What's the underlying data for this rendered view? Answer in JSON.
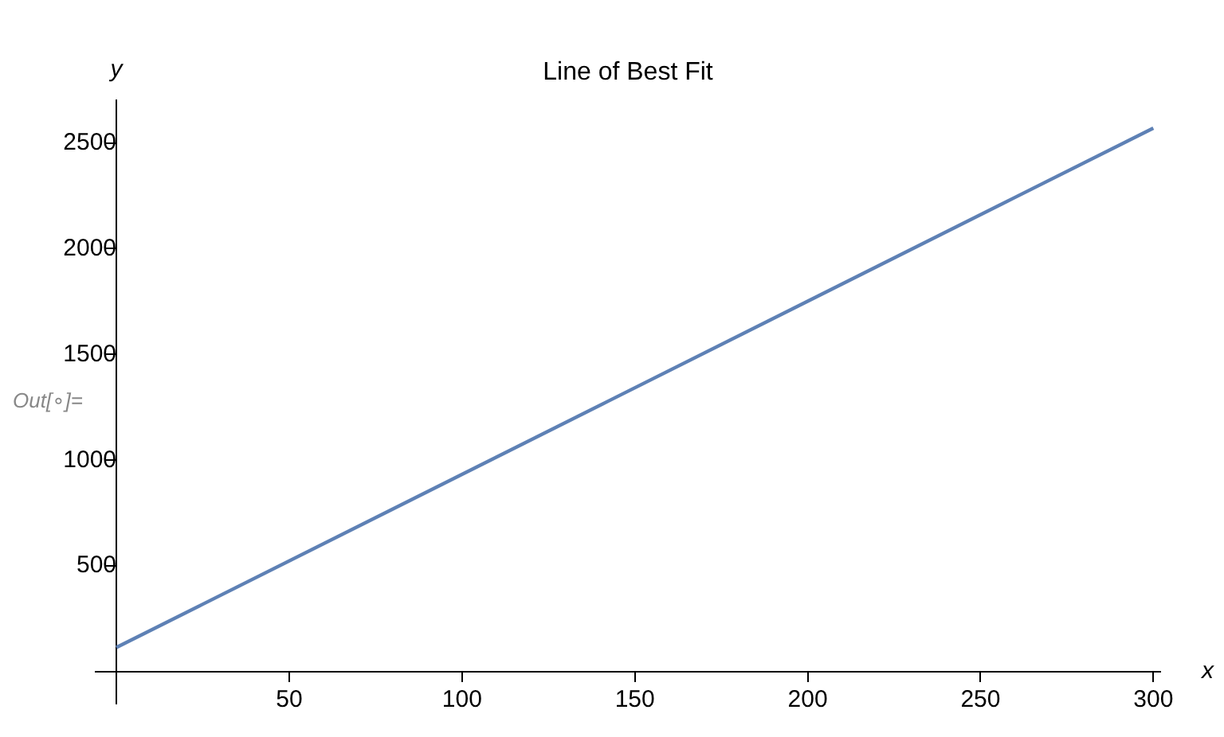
{
  "chart_data": {
    "type": "line",
    "title": "Line of Best Fit",
    "xlabel": "x",
    "ylabel": "y",
    "annotations": [
      "Out[∘]="
    ],
    "x": [
      0,
      300
    ],
    "series": [
      {
        "color": "#5e81b5",
        "values": [
          115,
          2570
        ]
      }
    ],
    "xlim": [
      -6,
      302
    ],
    "xticks": [
      50,
      100,
      150,
      200,
      250,
      300
    ],
    "ylim": [
      -150,
      2700
    ],
    "yticks": [
      500,
      1000,
      1500,
      2000,
      2500
    ],
    "grid": false,
    "legend": false,
    "marker": "none",
    "line_style": "solid"
  }
}
